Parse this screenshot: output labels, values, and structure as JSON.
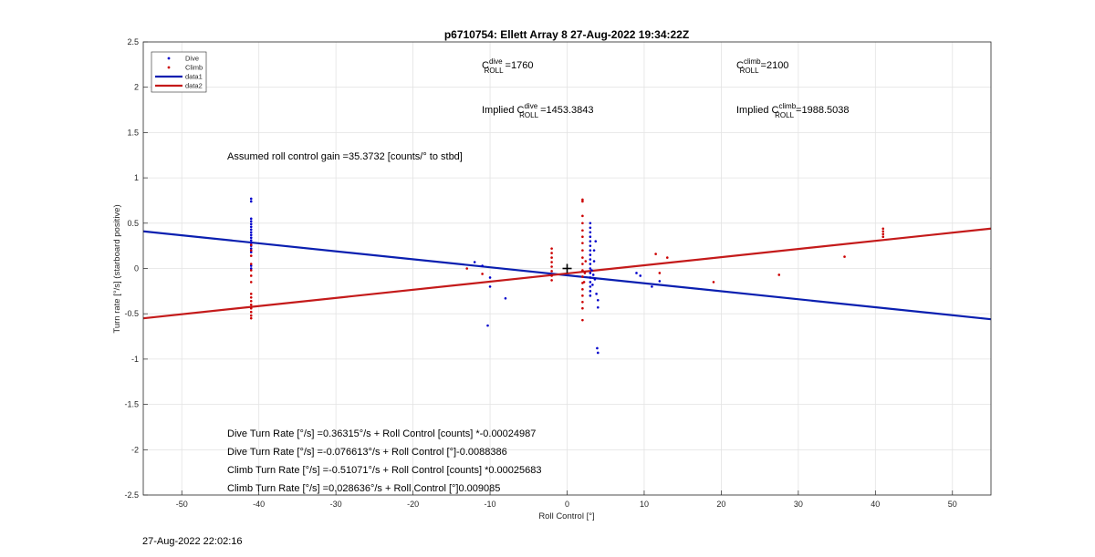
{
  "chart_data": {
    "type": "scatter",
    "title": "p6710754: Ellett Array 8 27-Aug-2022 19:34:22Z",
    "xlabel": "Roll Control [°]",
    "ylabel": "Turn rate [°/s] (starboard positive)",
    "xlim": [
      -55,
      55
    ],
    "ylim": [
      -2.5,
      2.5
    ],
    "xticks": [
      -50,
      -40,
      -30,
      -20,
      -10,
      0,
      10,
      20,
      30,
      40,
      50
    ],
    "yticks": [
      -2.5,
      -2,
      -1.5,
      -1,
      -0.5,
      0,
      0.5,
      1,
      1.5,
      2,
      2.5
    ],
    "xtick_labels": [
      "-50",
      "-40",
      "-30",
      "-20",
      "-10",
      "0",
      "10",
      "20",
      "30",
      "40",
      "50"
    ],
    "ytick_labels": [
      "-2.5",
      "-2",
      "-1.5",
      "-1",
      "-0.5",
      "0",
      "0.5",
      "1",
      "1.5",
      "2",
      "2.5"
    ],
    "grid": true,
    "legend_position": "top-left",
    "legend": [
      {
        "name": "Dive",
        "kind": "marker",
        "color": "#0000cc"
      },
      {
        "name": "Climb",
        "kind": "marker",
        "color": "#cc0000"
      },
      {
        "name": "data1",
        "kind": "line",
        "color": "#0a1fb0"
      },
      {
        "name": "data2",
        "kind": "line",
        "color": "#c41a1a"
      }
    ],
    "lines": [
      {
        "name": "data1",
        "color": "#0a1fb0",
        "x": [
          -55,
          55
        ],
        "y": [
          0.41,
          -0.56
        ]
      },
      {
        "name": "data2",
        "color": "#c41a1a",
        "x": [
          -55,
          55
        ],
        "y": [
          -0.55,
          0.44
        ]
      }
    ],
    "series": [
      {
        "name": "Dive",
        "color": "#0000cc",
        "points": [
          [
            -41,
            0.77
          ],
          [
            -41,
            0.74
          ],
          [
            -41,
            0.55
          ],
          [
            -41,
            0.52
          ],
          [
            -41,
            0.49
          ],
          [
            -41,
            0.46
          ],
          [
            -41,
            0.43
          ],
          [
            -41,
            0.4
          ],
          [
            -41,
            0.37
          ],
          [
            -41,
            0.34
          ],
          [
            -41,
            0.31
          ],
          [
            -41,
            0.28
          ],
          [
            -41,
            0.25
          ],
          [
            -41,
            0.22
          ],
          [
            -41,
            0.18
          ],
          [
            -41,
            0.03
          ],
          [
            -41,
            0.0
          ],
          [
            -12,
            0.07
          ],
          [
            -11,
            0.03
          ],
          [
            -10,
            -0.1
          ],
          [
            -10,
            -0.2
          ],
          [
            -8,
            -0.33
          ],
          [
            -10.3,
            -0.63
          ],
          [
            3,
            0.5
          ],
          [
            3,
            0.45
          ],
          [
            3,
            0.4
          ],
          [
            3,
            0.35
          ],
          [
            3,
            0.3
          ],
          [
            3,
            0.25
          ],
          [
            3,
            0.2
          ],
          [
            3,
            0.15
          ],
          [
            3,
            0.1
          ],
          [
            3,
            0.05
          ],
          [
            3,
            0.0
          ],
          [
            3,
            -0.05
          ],
          [
            3,
            -0.1
          ],
          [
            3,
            -0.15
          ],
          [
            3,
            -0.2
          ],
          [
            3,
            -0.25
          ],
          [
            3,
            -0.3
          ],
          [
            3.2,
            -0.02
          ],
          [
            3.4,
            -0.07
          ],
          [
            3.6,
            -0.12
          ],
          [
            3.5,
            0.08
          ],
          [
            3.3,
            -0.18
          ],
          [
            3.8,
            -0.28
          ],
          [
            3.5,
            0.2
          ],
          [
            3.7,
            0.3
          ],
          [
            4,
            -0.35
          ],
          [
            4,
            -0.43
          ],
          [
            3.9,
            -0.88
          ],
          [
            4,
            -0.93
          ],
          [
            9,
            -0.05
          ],
          [
            9.5,
            -0.08
          ],
          [
            11,
            -0.2
          ],
          [
            12,
            -0.14
          ]
        ]
      },
      {
        "name": "Climb",
        "color": "#cc0000",
        "points": [
          [
            -41,
            0.26
          ],
          [
            -41,
            0.2
          ],
          [
            -41,
            0.14
          ],
          [
            -41,
            0.05
          ],
          [
            -41,
            -0.02
          ],
          [
            -41,
            -0.08
          ],
          [
            -41,
            -0.15
          ],
          [
            -41,
            -0.28
          ],
          [
            -41,
            -0.32
          ],
          [
            -41,
            -0.36
          ],
          [
            -41,
            -0.4
          ],
          [
            -41,
            -0.44
          ],
          [
            -41,
            -0.48
          ],
          [
            -41,
            -0.52
          ],
          [
            -41,
            -0.55
          ],
          [
            -13,
            0.0
          ],
          [
            -11,
            -0.06
          ],
          [
            -2,
            0.22
          ],
          [
            -2,
            0.17
          ],
          [
            -2,
            0.12
          ],
          [
            -2,
            0.07
          ],
          [
            -2,
            0.02
          ],
          [
            -2,
            -0.03
          ],
          [
            -2,
            -0.08
          ],
          [
            -2,
            -0.13
          ],
          [
            2,
            0.76
          ],
          [
            2,
            0.74
          ],
          [
            2,
            0.58
          ],
          [
            2,
            0.5
          ],
          [
            2,
            0.42
          ],
          [
            2,
            0.35
          ],
          [
            2,
            0.28
          ],
          [
            2,
            0.2
          ],
          [
            2,
            0.12
          ],
          [
            2,
            0.05
          ],
          [
            2,
            -0.02
          ],
          [
            2,
            -0.09
          ],
          [
            2,
            -0.16
          ],
          [
            2,
            -0.23
          ],
          [
            2,
            -0.3
          ],
          [
            2,
            -0.37
          ],
          [
            2,
            -0.44
          ],
          [
            2,
            -0.57
          ],
          [
            2.3,
            -0.05
          ],
          [
            2.4,
            0.08
          ],
          [
            2.2,
            -0.15
          ],
          [
            11.5,
            0.16
          ],
          [
            12,
            -0.05
          ],
          [
            13,
            0.12
          ],
          [
            19,
            -0.15
          ],
          [
            27.5,
            -0.07
          ],
          [
            36,
            0.13
          ],
          [
            41,
            0.44
          ],
          [
            41,
            0.41
          ],
          [
            41,
            0.38
          ],
          [
            41,
            0.35
          ]
        ]
      }
    ],
    "marker": {
      "x": 0,
      "y": 0,
      "symbol": "+"
    },
    "annotations": {
      "c_dive": {
        "prefix": "C",
        "sup": "dive",
        "sub": "ROLL",
        "value": "=1760"
      },
      "c_climb": {
        "prefix": "C",
        "sup": "climb",
        "sub": "ROLL",
        "value": "=2100"
      },
      "implied_dive": {
        "prefix": "Implied C",
        "sup": "dive",
        "sub": "ROLL",
        "value": "=1453.3843"
      },
      "implied_climb": {
        "prefix": "Implied C",
        "sup": "climb",
        "sub": "ROLL",
        "value": "=1988.5038"
      },
      "gain": "Assumed roll control gain =35.3732 [counts/° to stbd]",
      "fits": [
        "Dive Turn Rate [°/s] =0.36315°/s + Roll Control [counts] *-0.00024987",
        "Dive Turn Rate [°/s] =-0.076613°/s + Roll Control [°]-0.0088386",
        "Climb Turn Rate [°/s] =-0.51071°/s + Roll Control [counts] *0.00025683",
        "Climb Turn Rate [°/s] =0.028636°/s + Roll Control [°]0.009085"
      ]
    }
  },
  "timestamp": "27-Aug-2022 22:02:16"
}
